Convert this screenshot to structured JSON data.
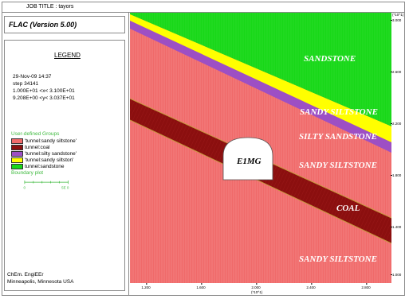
{
  "job_title": "JOB TITLE : tayors",
  "program_title": "FLAC (Version 5.00)",
  "legend": {
    "title": "LEGEND",
    "date": "29-Nov-09  14:37",
    "step": "step   34141",
    "xrange": "1.000E+01 <x< 3.100E+01",
    "yrange": "9.208E+00 <y< 3.037E+01"
  },
  "groups": {
    "title": "User-defined Groups",
    "items": [
      {
        "label": "'tunnel:sandy siltstone'",
        "color": "#f06a6a"
      },
      {
        "label": "tunnel:coal",
        "color": "#8b0f0f"
      },
      {
        "label": "'tunnel:silty sandstone'",
        "color": "#9d4fc4"
      },
      {
        "label": "'tunnel:sandy siltston'",
        "color": "#ffff00"
      },
      {
        "label": "tunnel:sandstone",
        "color": "#18d818"
      }
    ]
  },
  "boundary": {
    "title": "Boundary plot",
    "scale_start": "0",
    "scale_end": "5E  0"
  },
  "credits": {
    "line1": "ChEm. EngiEEr",
    "line2": "Minneapolis, Minnesota  USA"
  },
  "layers": {
    "sandstone": "SANDSTONE",
    "sandy_siltstone_1": "SANDY SILTSTONE",
    "silty_sandstone": "SILTY SANDSTONE",
    "sandy_siltstone_2": "SANDY SILTSTONE",
    "coal": "COAL",
    "sandy_siltstone_3": "SANDY SILTSTONE",
    "tunnel": "E1MG"
  },
  "axes": {
    "y_unit": "(*10^1)",
    "x_unit": "(*10^1)",
    "y_ticks": [
      "3.000",
      "2.600",
      "2.200",
      "1.800",
      "1.400",
      "1.000"
    ],
    "x_ticks": [
      "1.200",
      "1.600",
      "2.000",
      "2.400",
      "2.800"
    ]
  }
}
